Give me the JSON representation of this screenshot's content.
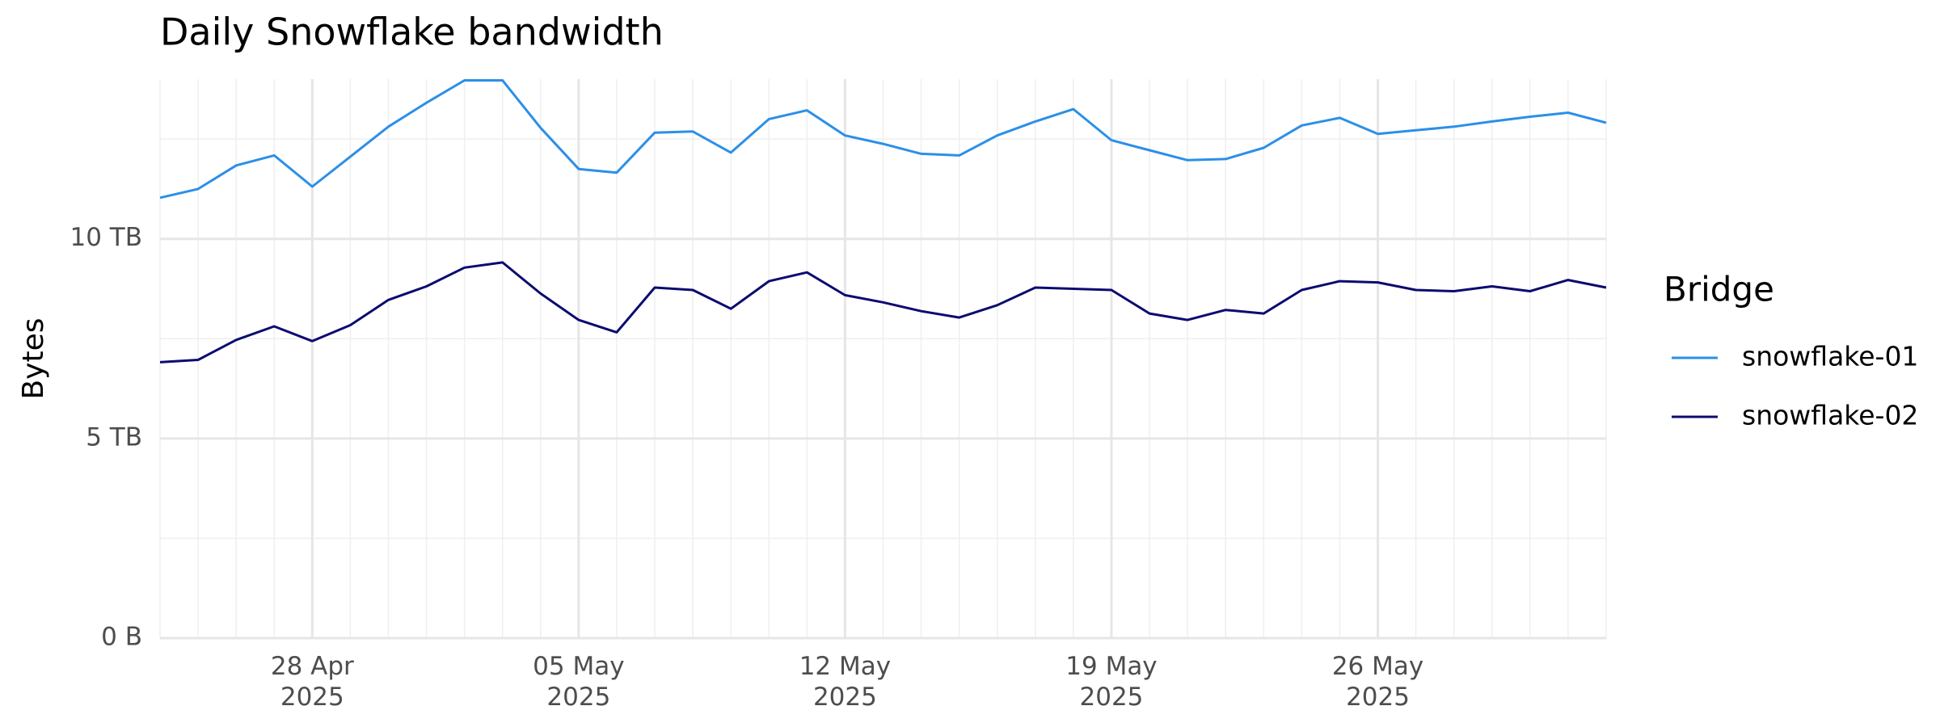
{
  "chart_data": {
    "type": "line",
    "title": "Daily Snowflake bandwidth",
    "y_label": "Bytes",
    "legend_title": "Bridge",
    "legend": "right",
    "grid": true,
    "x": [
      "2025-04-24",
      "2025-04-25",
      "2025-04-26",
      "2025-04-27",
      "2025-04-28",
      "2025-04-29",
      "2025-04-30",
      "2025-05-01",
      "2025-05-02",
      "2025-05-03",
      "2025-05-04",
      "2025-05-05",
      "2025-05-06",
      "2025-05-07",
      "2025-05-08",
      "2025-05-09",
      "2025-05-10",
      "2025-05-11",
      "2025-05-12",
      "2025-05-13",
      "2025-05-14",
      "2025-05-15",
      "2025-05-16",
      "2025-05-17",
      "2025-05-18",
      "2025-05-19",
      "2025-05-20",
      "2025-05-21",
      "2025-05-22",
      "2025-05-23",
      "2025-05-24",
      "2025-05-25",
      "2025-05-26",
      "2025-05-27",
      "2025-05-28",
      "2025-05-29",
      "2025-05-30",
      "2025-05-31",
      "2025-06-01"
    ],
    "series": [
      {
        "name": "snowflake-01",
        "color": "#2b8fe8",
        "values": [
          11.03,
          11.25,
          11.84,
          12.09,
          11.31,
          12.06,
          12.81,
          13.41,
          13.97,
          13.97,
          12.78,
          11.75,
          11.66,
          12.66,
          12.69,
          12.16,
          13.0,
          13.22,
          12.59,
          12.38,
          12.13,
          12.09,
          12.59,
          12.94,
          13.25,
          12.47,
          12.22,
          11.97,
          12.0,
          12.28,
          12.84,
          13.03,
          12.63,
          12.72,
          12.81,
          12.94,
          13.06,
          13.16,
          12.91
        ]
      },
      {
        "name": "snowflake-02",
        "color": "#0b0b70",
        "values": [
          6.91,
          6.97,
          7.47,
          7.81,
          7.44,
          7.84,
          8.47,
          8.81,
          9.28,
          9.41,
          8.63,
          7.97,
          7.66,
          8.78,
          8.72,
          8.25,
          8.94,
          9.16,
          8.59,
          8.41,
          8.19,
          8.03,
          8.34,
          8.78,
          8.75,
          8.72,
          8.13,
          7.97,
          8.22,
          8.13,
          8.72,
          8.94,
          8.91,
          8.72,
          8.69,
          8.81,
          8.69,
          8.97,
          8.78
        ]
      }
    ],
    "xlim": [
      "2025-04-24",
      "2025-06-01"
    ],
    "xticks": [
      {
        "value": "2025-04-28",
        "label": "28 Apr\n2025"
      },
      {
        "value": "2025-05-05",
        "label": "05 May\n2025"
      },
      {
        "value": "2025-05-12",
        "label": "12 May\n2025"
      },
      {
        "value": "2025-05-19",
        "label": "19 May\n2025"
      },
      {
        "value": "2025-05-26",
        "label": "26 May\n2025"
      }
    ],
    "ylim": [
      0,
      14
    ],
    "yticks": [
      {
        "value": 0,
        "label": "0 B"
      },
      {
        "value": 5,
        "label": "5 TB"
      },
      {
        "value": 10,
        "label": "10 TB"
      }
    ],
    "yminor_ticks": [
      2.5,
      7.5,
      12.5
    ]
  }
}
